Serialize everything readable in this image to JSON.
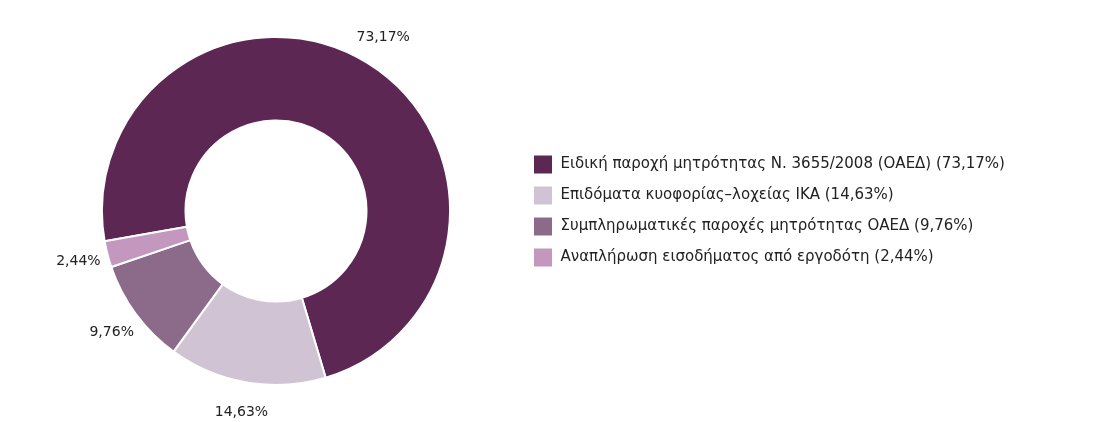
{
  "chart_data": {
    "type": "donut",
    "categories": [
      "Ειδική παροχή μητρότητας Ν. 3655/2008 (ΟΑΕΔ) (73,17%)",
      "Επιδόματα κυοφορίας–λοχείας ΙΚΑ (14,63%)",
      "Συμπληρωματικές παροχές μητρότητας ΟΑΕΔ (9,76%)",
      "Αναπλήρωση εισοδήματος από εργοδότη (2,44%)"
    ],
    "values": [
      73.17,
      14.63,
      9.76,
      2.44
    ],
    "value_labels": [
      "73,17%",
      "14,63%",
      "9,76%",
      "2,44%"
    ],
    "colors": [
      "#5c2752",
      "#d0c4d4",
      "#8c6a89",
      "#c497bf"
    ],
    "legend": "right"
  }
}
